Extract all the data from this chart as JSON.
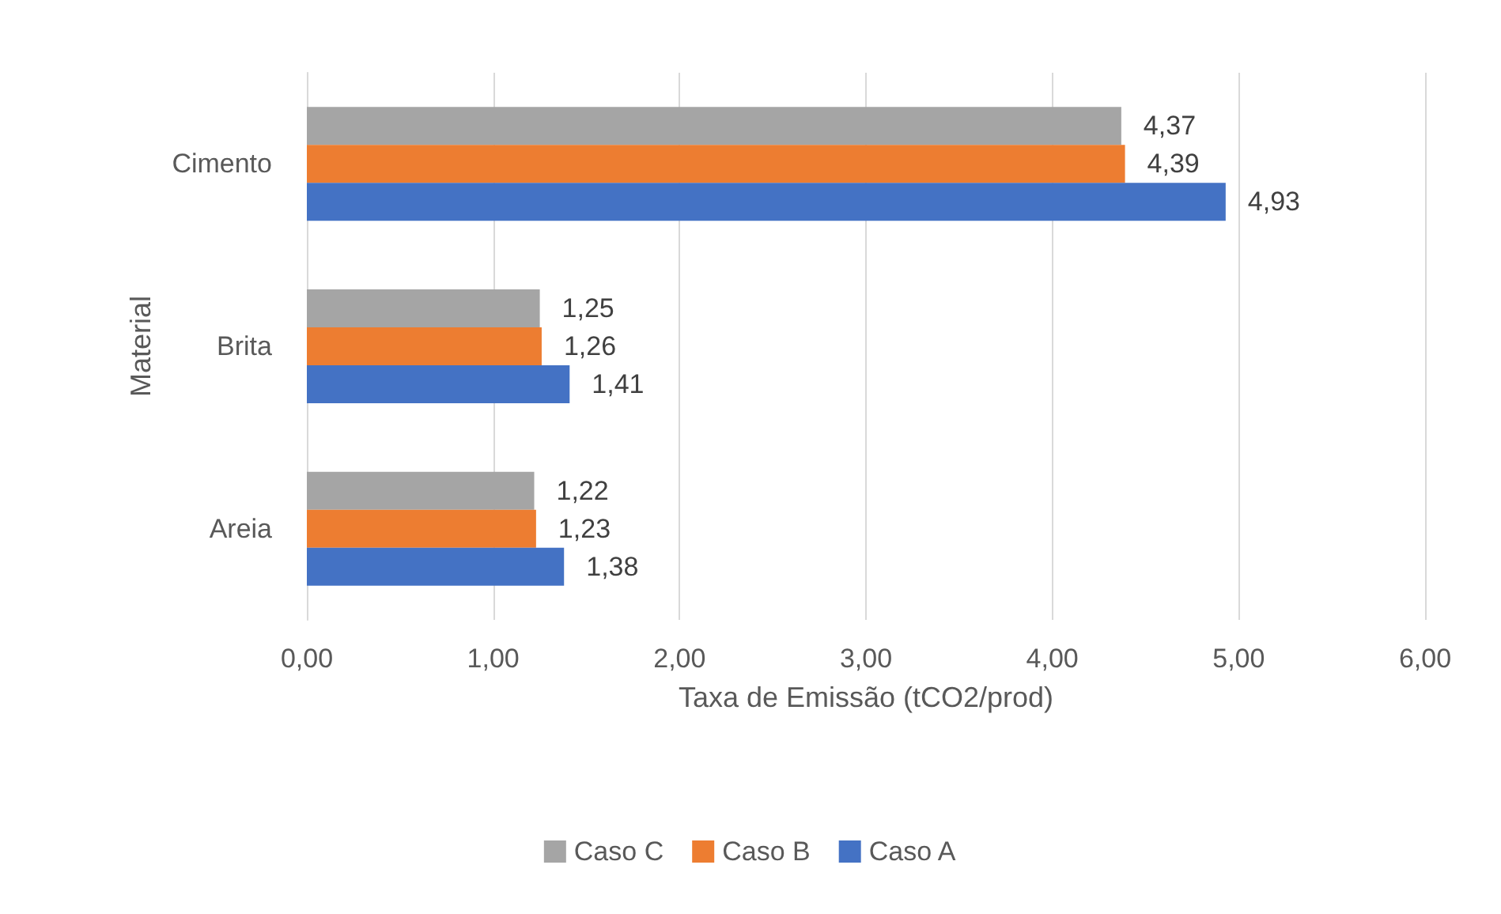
{
  "chart_data": {
    "type": "bar",
    "orientation": "horizontal",
    "xlabel": "Taxa de Emissão (tCO2/prod)",
    "ylabel": "Material",
    "categories": [
      "Cimento",
      "Brita",
      "Areia"
    ],
    "series": [
      {
        "name": "Caso C",
        "color": "#a5a5a5",
        "values": [
          4.37,
          1.25,
          1.22
        ],
        "value_labels": [
          "4,37",
          "1,25",
          "1,22"
        ]
      },
      {
        "name": "Caso B",
        "color": "#ed7d31",
        "values": [
          4.39,
          1.26,
          1.23
        ],
        "value_labels": [
          "4,39",
          "1,26",
          "1,23"
        ]
      },
      {
        "name": "Caso A",
        "color": "#4472c4",
        "values": [
          4.93,
          1.41,
          1.38
        ],
        "value_labels": [
          "4,93",
          "1,41",
          "1,38"
        ]
      }
    ],
    "xlim": [
      0,
      6
    ],
    "xticks": [
      {
        "value": 0,
        "label": "0,00"
      },
      {
        "value": 1,
        "label": "1,00"
      },
      {
        "value": 2,
        "label": "2,00"
      },
      {
        "value": 3,
        "label": "3,00"
      },
      {
        "value": 4,
        "label": "4,00"
      },
      {
        "value": 5,
        "label": "5,00"
      },
      {
        "value": 6,
        "label": "6,00"
      }
    ],
    "grid": "x",
    "legend": "bottom"
  }
}
